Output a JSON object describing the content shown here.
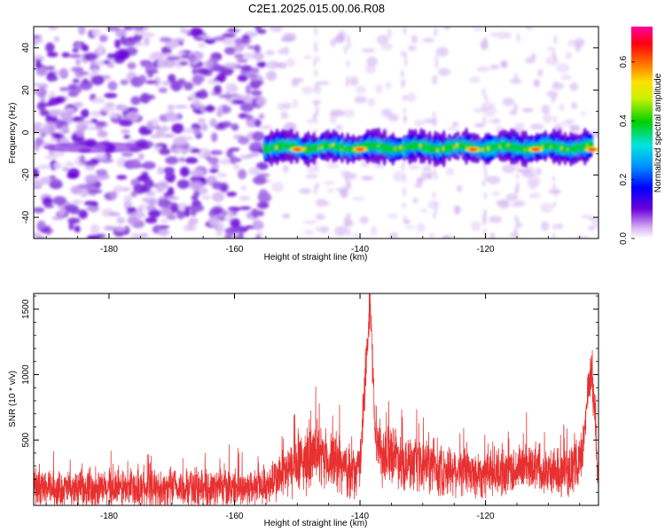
{
  "page_title": "C2E1.2025.015.00.06.R08",
  "chart_data": [
    {
      "type": "heatmap",
      "title": "C2E1.2025.015.00.06.R08",
      "xlabel": "Height of straight line (km)",
      "ylabel": "Frequency (Hz)",
      "xlim": [
        -192,
        -102
      ],
      "ylim": [
        -50,
        50
      ],
      "x_ticks": [
        -180,
        -160,
        -140,
        -120
      ],
      "y_ticks": [
        -40,
        -20,
        0,
        20,
        40
      ],
      "grid": false,
      "colormap": "rainbow (white → purple → blue → cyan → green → yellow → red → pink)",
      "colorbar": {
        "label": "Normalized spectral amplitude",
        "range": [
          0.0,
          0.72
        ],
        "ticks": [
          0.0,
          0.2,
          0.4,
          0.6
        ]
      },
      "features": {
        "noise_region_x": [
          -192,
          -155
        ],
        "signal_band_x": [
          -155,
          -103
        ],
        "signal_band_freq_hz": -7,
        "peak_amplitude_locations_x": [
          -150,
          -140,
          -122,
          -112,
          -103
        ]
      }
    },
    {
      "type": "line",
      "xlabel": "Height of straight line (km)",
      "ylabel": "SNR (10 * v/v)",
      "xlim": [
        -192,
        -102
      ],
      "ylim": [
        0,
        1620
      ],
      "x_ticks": [
        -180,
        -160,
        -140,
        -120
      ],
      "y_ticks": [
        500,
        1000,
        1500
      ],
      "grid": false,
      "series": [
        {
          "color": "#e83030",
          "baseline": [
            [
              -192,
              130
            ],
            [
              -185,
              120
            ],
            [
              -175,
              125
            ],
            [
              -165,
              130
            ],
            [
              -158,
              135
            ],
            [
              -155,
              150
            ],
            [
              -152,
              240
            ],
            [
              -149,
              330
            ],
            [
              -147,
              380
            ],
            [
              -145,
              340
            ],
            [
              -143,
              300
            ],
            [
              -141,
              240
            ],
            [
              -140,
              280
            ],
            [
              -139.3,
              900
            ],
            [
              -138.8,
              1250
            ],
            [
              -138.4,
              1500
            ],
            [
              -138.1,
              1200
            ],
            [
              -137.6,
              600
            ],
            [
              -136.5,
              380
            ],
            [
              -135,
              420
            ],
            [
              -133,
              330
            ],
            [
              -131,
              280
            ],
            [
              -129,
              300
            ],
            [
              -127,
              260
            ],
            [
              -125,
              280
            ],
            [
              -122,
              240
            ],
            [
              -120,
              250
            ],
            [
              -118,
              260
            ],
            [
              -116,
              260
            ],
            [
              -114,
              290
            ],
            [
              -112,
              320
            ],
            [
              -110,
              250
            ],
            [
              -108,
              250
            ],
            [
              -106,
              280
            ],
            [
              -104.5,
              400
            ],
            [
              -103.6,
              900
            ],
            [
              -103.1,
              1050
            ],
            [
              -102.6,
              700
            ],
            [
              -102.2,
              300
            ],
            [
              -102,
              200
            ]
          ],
          "noise_amplitude": [
            [
              -192,
              220
            ],
            [
              -155,
              230
            ],
            [
              -150,
              380
            ],
            [
              -145,
              350
            ],
            [
              -141,
              300
            ],
            [
              -139,
              300
            ],
            [
              -136,
              360
            ],
            [
              -130,
              320
            ],
            [
              -120,
              300
            ],
            [
              -110,
              280
            ],
            [
              -102,
              300
            ]
          ]
        }
      ]
    }
  ]
}
